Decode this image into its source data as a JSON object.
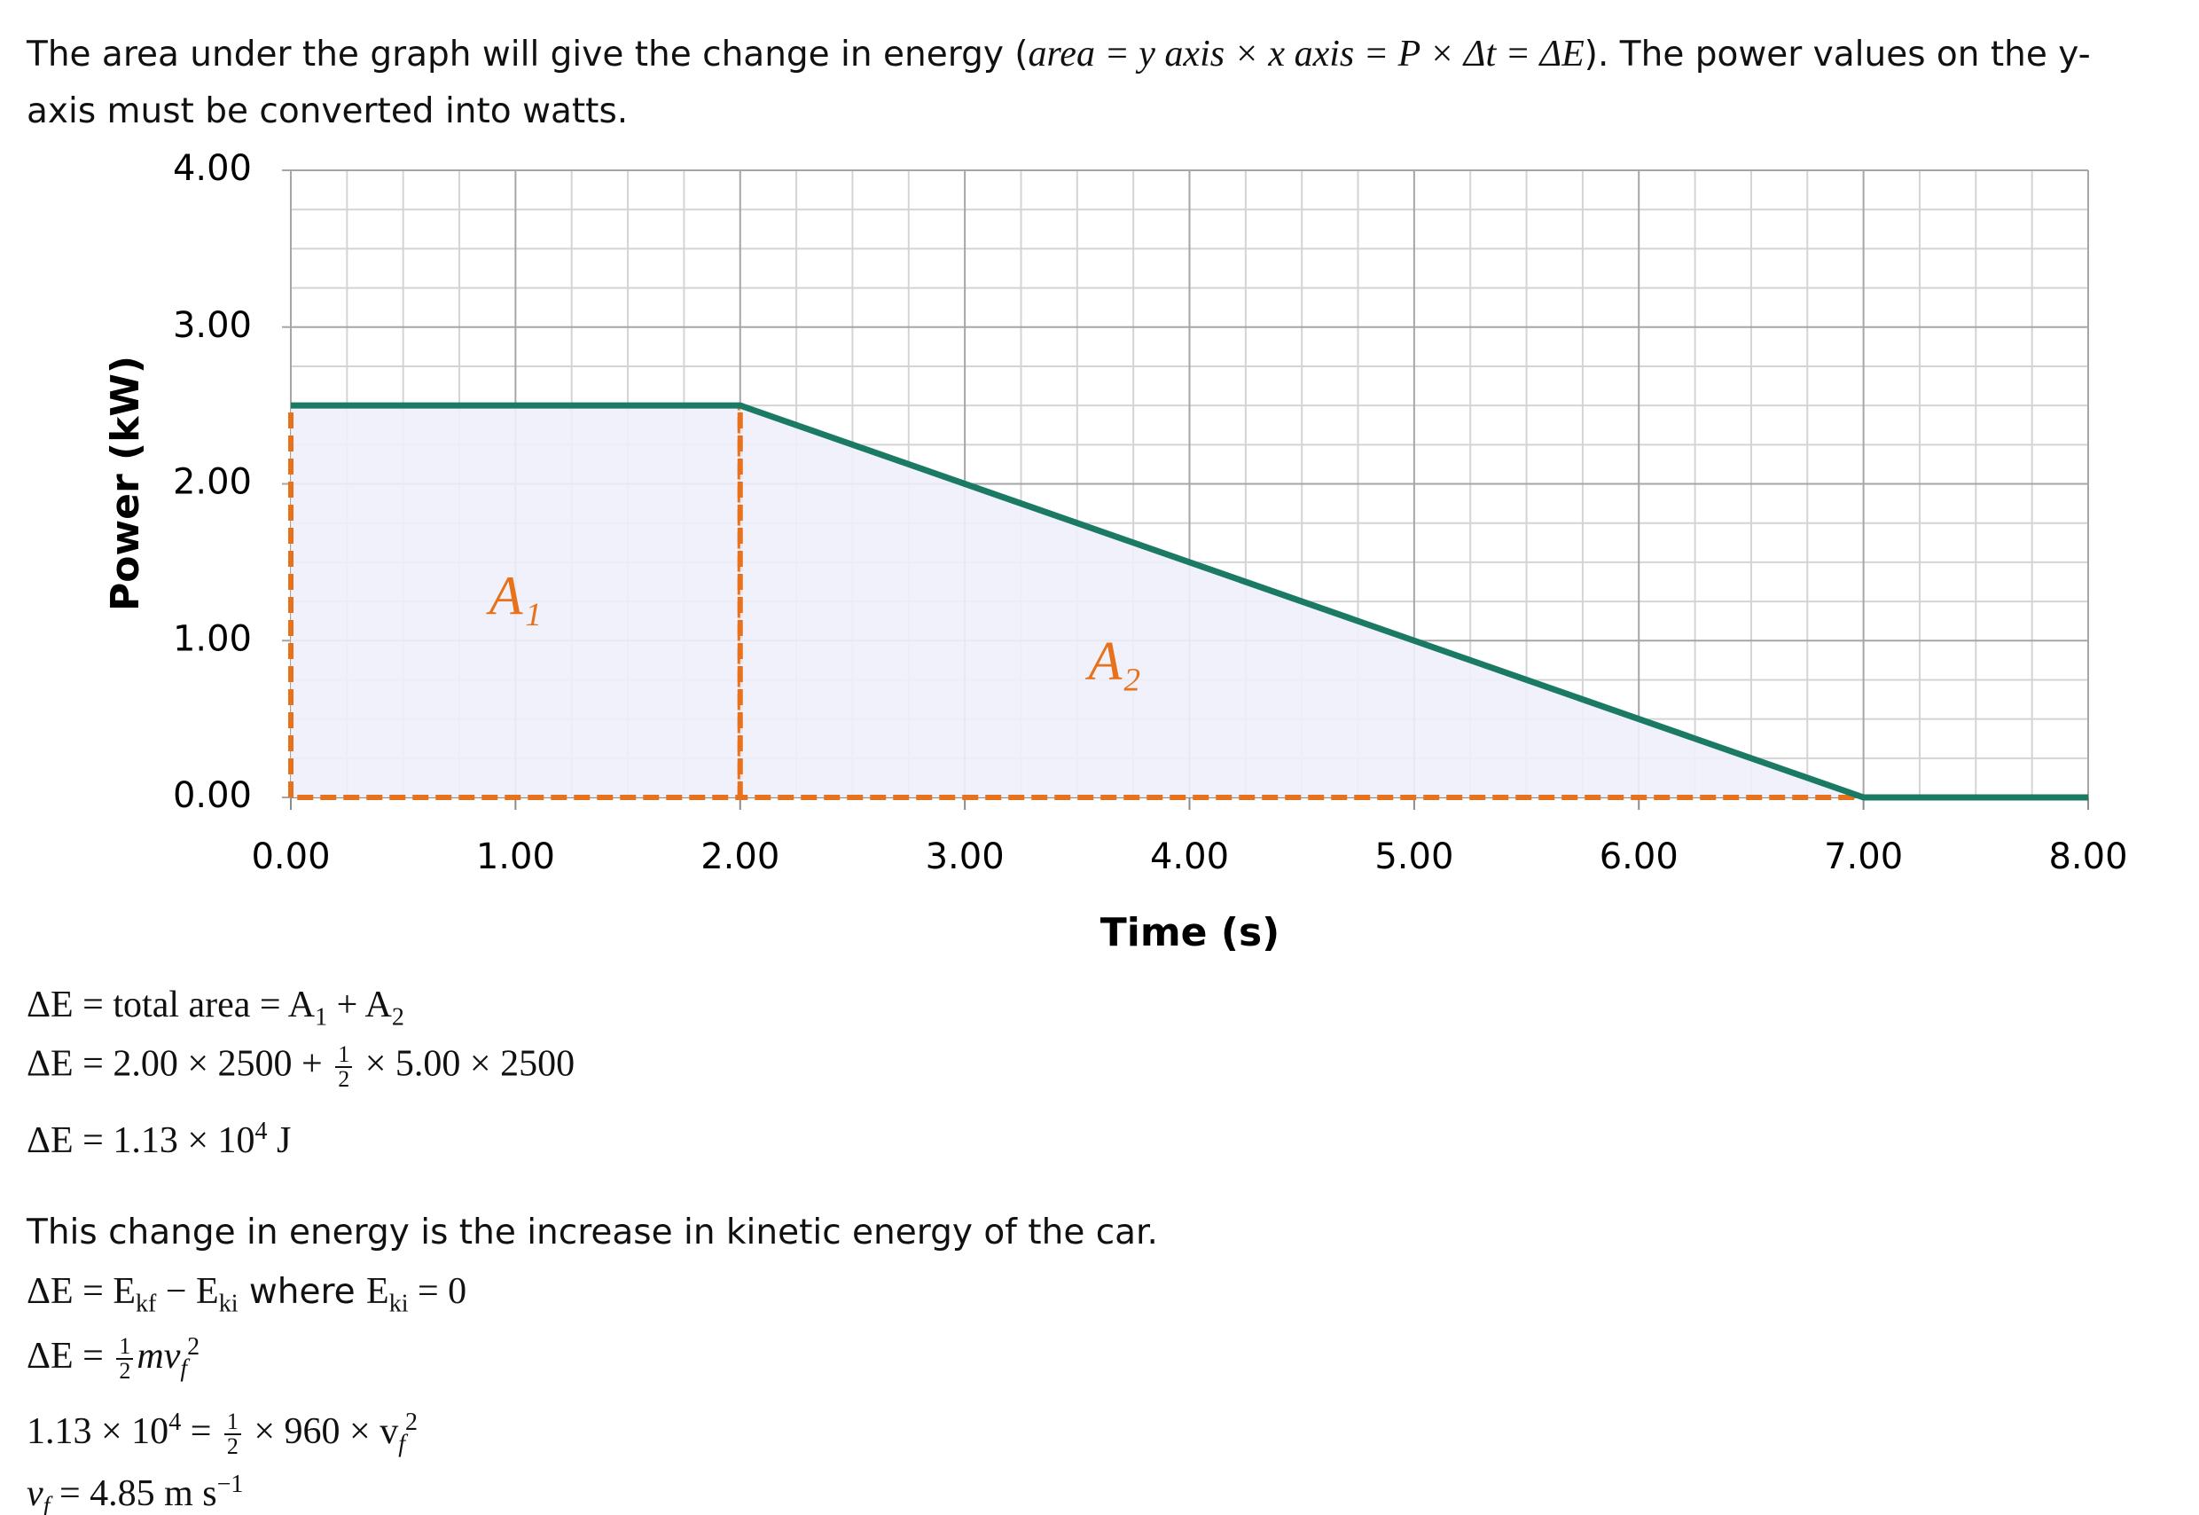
{
  "intro": [
    "The area under the graph will give the change in energy (",
    "area = y axis × x axis = P × Δt = ΔE",
    "). The power values on the y-",
    "axis must be converted into watts."
  ],
  "chart_data": {
    "type": "line",
    "x_label": "Time (s)",
    "y_label": "Power (kW)",
    "x": [
      0,
      2,
      7,
      8
    ],
    "series": [
      {
        "color": "#1b7a63",
        "values": [
          2.5,
          2.5,
          0,
          0
        ]
      }
    ],
    "xlim": [
      0,
      8
    ],
    "ylim": [
      0,
      4
    ],
    "xticks": [
      {
        "value": 0,
        "label": "0.00"
      },
      {
        "value": 1,
        "label": "1.00"
      },
      {
        "value": 2,
        "label": "2.00"
      },
      {
        "value": 3,
        "label": "3.00"
      },
      {
        "value": 4,
        "label": "4.00"
      },
      {
        "value": 5,
        "label": "5.00"
      },
      {
        "value": 6,
        "label": "6.00"
      },
      {
        "value": 7,
        "label": "7.00"
      },
      {
        "value": 8,
        "label": "8.00"
      }
    ],
    "yticks": [
      {
        "value": 0,
        "label": "0.00"
      },
      {
        "value": 1,
        "label": "1.00"
      },
      {
        "value": 2,
        "label": "2.00"
      },
      {
        "value": 3,
        "label": "3.00"
      },
      {
        "value": 4,
        "label": "4.00"
      }
    ],
    "grid": true,
    "minor_grid_divisions": 4,
    "regions": [
      {
        "label": "A₁",
        "color": "#e8711c",
        "x": [
          0,
          0,
          2,
          2
        ],
        "y": [
          0,
          2.5,
          2.5,
          0
        ]
      },
      {
        "label": "A₂",
        "color": "#e8711c",
        "x": [
          2,
          2,
          7
        ],
        "y": [
          0,
          2.5,
          0
        ]
      }
    ]
  },
  "equations": {
    "eq1": [
      "ΔE = total area = A",
      "1",
      " + A",
      "2"
    ],
    "eq2": [
      "ΔE = 2.00 × 2500 + ",
      "1",
      "2",
      " × 5.00 × 2500"
    ],
    "eq3": [
      "ΔE = 1.13 × 10",
      "4",
      " J"
    ],
    "sentence": "This change in energy is the increase in kinetic energy of the car.",
    "eq4": [
      "ΔE = E",
      "kf",
      " − E",
      "ki",
      " where ",
      "E",
      "ki",
      " = 0"
    ],
    "eq5": [
      "ΔE = ",
      "1",
      "2",
      "mv",
      "f",
      "2"
    ],
    "eq6": [
      "1.13 × 10",
      "4",
      " = ",
      "1",
      "2",
      " × 960 × v",
      "f",
      "2"
    ],
    "eq7": [
      "v",
      "f",
      " = 4.85 m s",
      "−1"
    ]
  }
}
